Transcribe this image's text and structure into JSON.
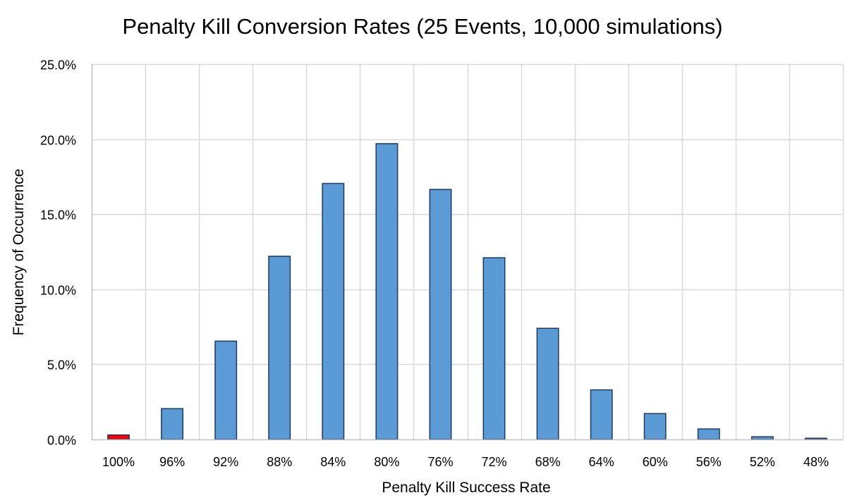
{
  "chart_data": {
    "type": "bar",
    "title": "Penalty Kill Conversion Rates (25 Events, 10,000 simulations)",
    "xlabel": "Penalty Kill Success Rate",
    "ylabel": "Frequency of Occurrence",
    "categories": [
      "100%",
      "96%",
      "92%",
      "88%",
      "84%",
      "80%",
      "76%",
      "72%",
      "68%",
      "64%",
      "60%",
      "56%",
      "52%",
      "48%"
    ],
    "values": [
      0.3,
      2.05,
      6.55,
      12.2,
      17.05,
      19.7,
      16.65,
      12.1,
      7.4,
      3.3,
      1.72,
      0.7,
      0.18,
      0.08
    ],
    "value_unit": "percent",
    "ylim": [
      0,
      25
    ],
    "yticks": [
      0,
      5,
      10,
      15,
      20,
      25
    ],
    "ytick_labels": [
      "0.0%",
      "5.0%",
      "10.0%",
      "15.0%",
      "20.0%",
      "25.0%"
    ],
    "grid": true,
    "legend": "none",
    "highlight_index": 0
  },
  "colors": {
    "bar_fill": "#5B9BD5",
    "bar_stroke": "#1F3864",
    "highlight_fill": "#FF0000",
    "grid": "#D9D9D9",
    "axis": "#BFBFBF",
    "text": "#000000"
  }
}
